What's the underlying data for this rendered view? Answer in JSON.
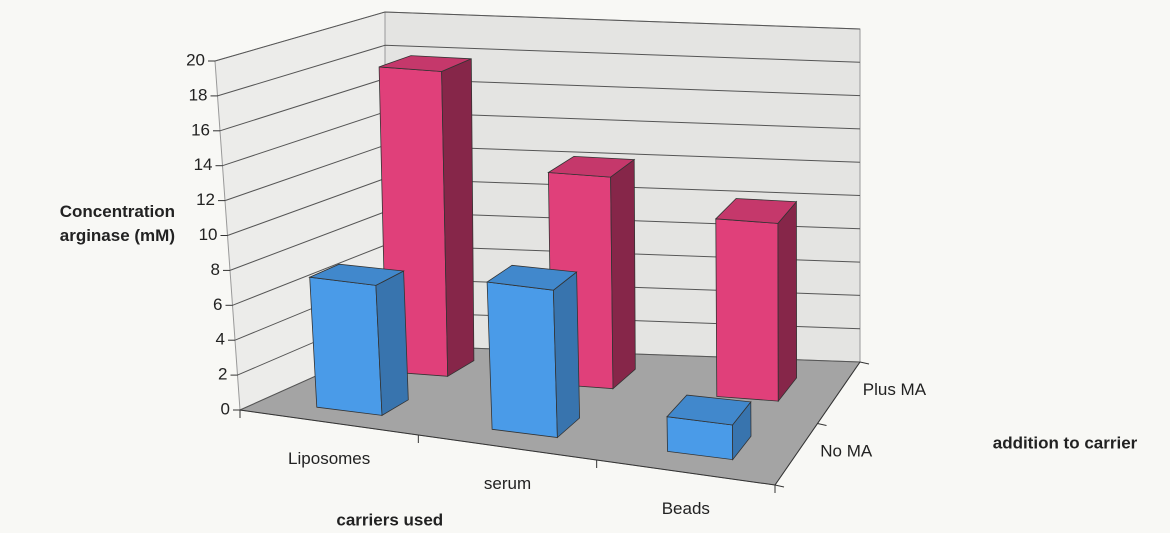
{
  "chart_data": {
    "type": "bar3d",
    "y_label": "Concentration arginase (mM)",
    "x_label": "carriers used",
    "z_label": "addition to carrier",
    "categories": [
      "Liposomes",
      "serum",
      "Beads"
    ],
    "series": [
      {
        "name": "No MA",
        "color": "#4a9be8",
        "values": [
          7.5,
          8.5,
          2
        ]
      },
      {
        "name": "Plus MA",
        "color": "#e0407a",
        "values": [
          18,
          12.5,
          10.5
        ]
      }
    ],
    "ylim": [
      0,
      20
    ],
    "yticks": [
      0,
      2,
      4,
      6,
      8,
      10,
      12,
      14,
      16,
      18,
      20
    ],
    "grid": true
  }
}
